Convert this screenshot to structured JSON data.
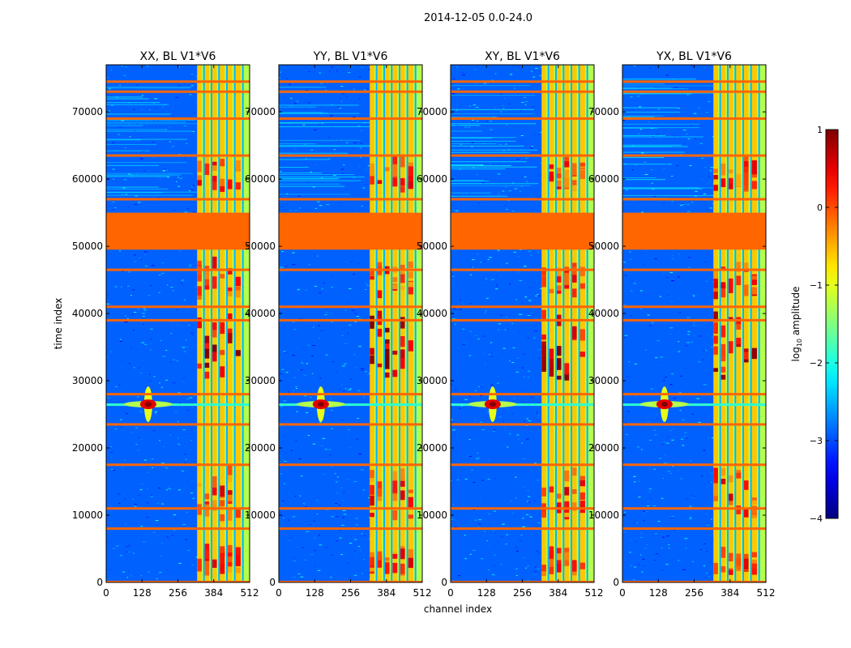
{
  "suptitle": "2014-12-05 0.0-24.0",
  "chart_data": [
    {
      "type": "heatmap",
      "title": "XX, BL V1*V6",
      "xlabel": "",
      "ylabel": "time index",
      "xlim": [
        0,
        512
      ],
      "ylim": [
        0,
        77000
      ],
      "xticks": [
        "0",
        "128",
        "256",
        "384",
        "512"
      ],
      "yticks": [
        "0",
        "10000",
        "20000",
        "30000",
        "40000",
        "50000",
        "60000",
        "70000"
      ],
      "strong_rfi_channels": [
        [
          325,
          512
        ]
      ],
      "dominant_blocks": [
        [
          325,
          341
        ],
        [
          352,
          368
        ],
        [
          379,
          395
        ],
        [
          406,
          423
        ],
        [
          434,
          450
        ],
        [
          462,
          480
        ]
      ],
      "flagged_time_ranges": [
        [
          49500,
          55000
        ]
      ],
      "flagged_time_rows": [
        8000,
        11000,
        17500,
        23500,
        28000,
        39000,
        41000,
        46500,
        57000,
        63500,
        69000,
        73000,
        74500
      ]
    },
    {
      "type": "heatmap",
      "title": "YY, BL V1*V6",
      "xlabel": "channel index",
      "ylabel": "",
      "xlim": [
        0,
        512
      ],
      "ylim": [
        0,
        77000
      ],
      "xticks": [
        "0",
        "128",
        "256",
        "384",
        "512"
      ],
      "yticks": [
        "0",
        "10000",
        "20000",
        "30000",
        "40000",
        "50000",
        "60000",
        "70000"
      ],
      "strong_rfi_channels": [
        [
          325,
          512
        ]
      ],
      "dominant_blocks": [
        [
          325,
          341
        ],
        [
          352,
          368
        ],
        [
          379,
          395
        ],
        [
          406,
          423
        ],
        [
          434,
          450
        ],
        [
          462,
          480
        ]
      ],
      "flagged_time_ranges": [
        [
          49500,
          55000
        ]
      ],
      "flagged_time_rows": [
        8000,
        11000,
        17500,
        23500,
        28000,
        39000,
        41000,
        46500,
        57000,
        63500,
        69000,
        73000,
        74500
      ]
    },
    {
      "type": "heatmap",
      "title": "XY, BL V1*V6",
      "xlabel": "",
      "ylabel": "",
      "xlim": [
        0,
        512
      ],
      "ylim": [
        0,
        77000
      ],
      "xticks": [
        "0",
        "128",
        "256",
        "384",
        "512"
      ],
      "yticks": [
        "0",
        "10000",
        "20000",
        "30000",
        "40000",
        "50000",
        "60000",
        "70000"
      ],
      "strong_rfi_channels": [
        [
          325,
          512
        ]
      ],
      "dominant_blocks": [
        [
          325,
          341
        ],
        [
          352,
          368
        ],
        [
          379,
          395
        ],
        [
          406,
          423
        ],
        [
          434,
          450
        ],
        [
          462,
          480
        ]
      ],
      "flagged_time_ranges": [
        [
          49500,
          55000
        ]
      ],
      "flagged_time_rows": [
        8000,
        11000,
        17500,
        23500,
        28000,
        39000,
        41000,
        46500,
        57000,
        63500,
        69000,
        73000,
        74500
      ]
    },
    {
      "type": "heatmap",
      "title": "YX, BL V1*V6",
      "xlabel": "",
      "ylabel": "",
      "xlim": [
        0,
        512
      ],
      "ylim": [
        0,
        77000
      ],
      "xticks": [
        "0",
        "128",
        "256",
        "384",
        "512"
      ],
      "yticks": [
        "0",
        "10000",
        "20000",
        "30000",
        "40000",
        "50000",
        "60000",
        "70000"
      ],
      "strong_rfi_channels": [
        [
          325,
          512
        ]
      ],
      "dominant_blocks": [
        [
          325,
          341
        ],
        [
          352,
          368
        ],
        [
          379,
          395
        ],
        [
          406,
          423
        ],
        [
          434,
          450
        ],
        [
          462,
          480
        ]
      ],
      "flagged_time_ranges": [
        [
          49500,
          55000
        ]
      ],
      "flagged_time_rows": [
        8000,
        11000,
        17500,
        23500,
        28000,
        39000,
        41000,
        46500,
        57000,
        63500,
        69000,
        73000,
        74500
      ]
    }
  ],
  "colorbar": {
    "label_main": "log",
    "label_sub": "10",
    "label_rest": " amplitude",
    "ticks": [
      "1",
      "0",
      "−1",
      "−2",
      "−3",
      "−4"
    ],
    "tick_values": [
      1,
      0,
      -1,
      -2,
      -3,
      -4
    ],
    "range": [
      -4,
      1
    ],
    "colormap": "jet",
    "flag_color": "#ff6600"
  }
}
